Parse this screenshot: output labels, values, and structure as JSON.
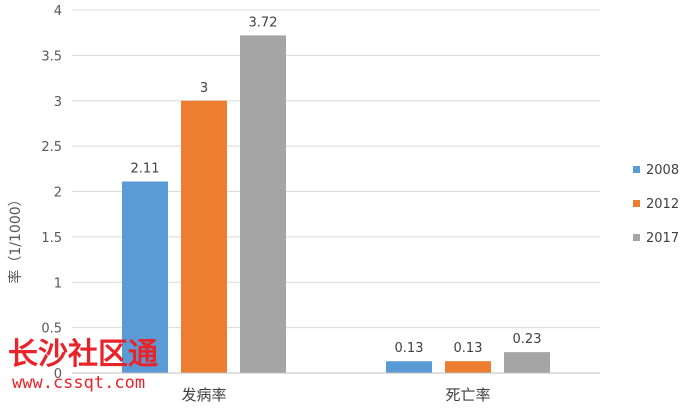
{
  "chart_data": {
    "type": "bar",
    "categories": [
      "发病率",
      "死亡率"
    ],
    "series": [
      {
        "name": "2008",
        "values": [
          2.11,
          0.13
        ],
        "color": "#5b9bd5"
      },
      {
        "name": "2012",
        "values": [
          3,
          0.13
        ],
        "color": "#ed7d31"
      },
      {
        "name": "2017",
        "values": [
          3.72,
          0.23
        ],
        "color": "#a5a5a5"
      }
    ],
    "data_labels": [
      [
        "2.11",
        "0.13"
      ],
      [
        "3",
        "0.13"
      ],
      [
        "3.72",
        "0.23"
      ]
    ],
    "y_ticks": [
      "0",
      "0.5",
      "1",
      "1.5",
      "2",
      "2.5",
      "3",
      "3.5",
      "4"
    ],
    "ylabel": "率（1/1000）",
    "xlabel": "",
    "title": "",
    "ylim": [
      0,
      4
    ],
    "grid": true,
    "legend_position": "right"
  },
  "watermark": {
    "text": "长沙社区通",
    "url": "www.cssqt.com"
  }
}
